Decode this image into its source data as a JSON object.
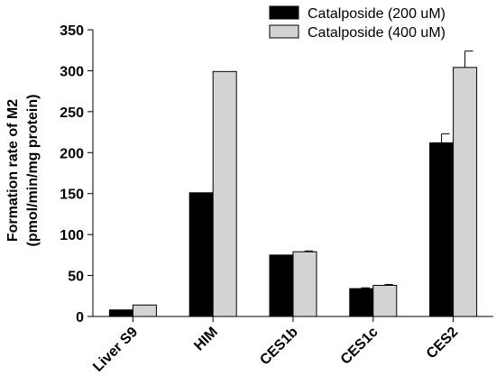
{
  "chart_data": {
    "type": "bar",
    "categories": [
      "Liver S9",
      "HIM",
      "CES1b",
      "CES1c",
      "CES2"
    ],
    "series": [
      {
        "name": "Catalposide (200 uM)",
        "color": "#000000",
        "values": [
          8,
          151,
          75,
          34,
          212
        ],
        "errors": [
          0,
          0,
          0,
          1,
          11
        ]
      },
      {
        "name": "Catalposide (400 uM)",
        "color": "#d3d3d3",
        "values": [
          14,
          299,
          79,
          38,
          304
        ],
        "errors": [
          0,
          0,
          1,
          1,
          20
        ]
      }
    ],
    "ylabel_line1": "Formation rate of M2",
    "ylabel_line2": "(pmol/min/mg protein)",
    "ylim": [
      0,
      350
    ],
    "yticks": [
      0,
      50,
      100,
      150,
      200,
      250,
      300,
      350
    ],
    "legend_position": "top-right",
    "grid": false
  }
}
